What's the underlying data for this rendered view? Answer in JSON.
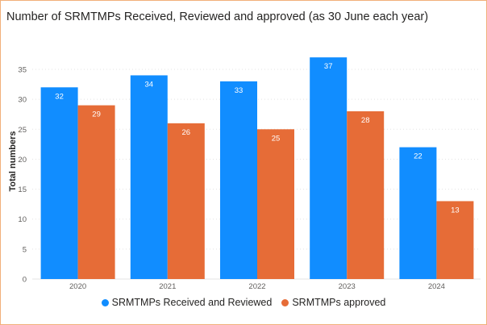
{
  "title": "Number of SRMTMPs Received, Reviewed and approved (as 30 June each year)",
  "chart_data": {
    "type": "bar",
    "title": "Number of SRMTMPs Received, Reviewed and approved (as 30 June each year)",
    "xlabel": "",
    "ylabel": "Total numbers",
    "categories": [
      "2020",
      "2021",
      "2022",
      "2023",
      "2024"
    ],
    "series": [
      {
        "name": "SRMTMPs Received and Reviewed",
        "values": [
          32,
          34,
          33,
          37,
          22
        ],
        "color": "#118dff"
      },
      {
        "name": "SRMTMPs approved",
        "values": [
          29,
          26,
          25,
          28,
          13
        ],
        "color": "#e66c37"
      }
    ],
    "ylim": [
      0,
      35
    ],
    "yticks": [
      0,
      5,
      10,
      15,
      20,
      25,
      30,
      35
    ],
    "grid": true,
    "data_labels": true,
    "legend_position": "bottom"
  }
}
